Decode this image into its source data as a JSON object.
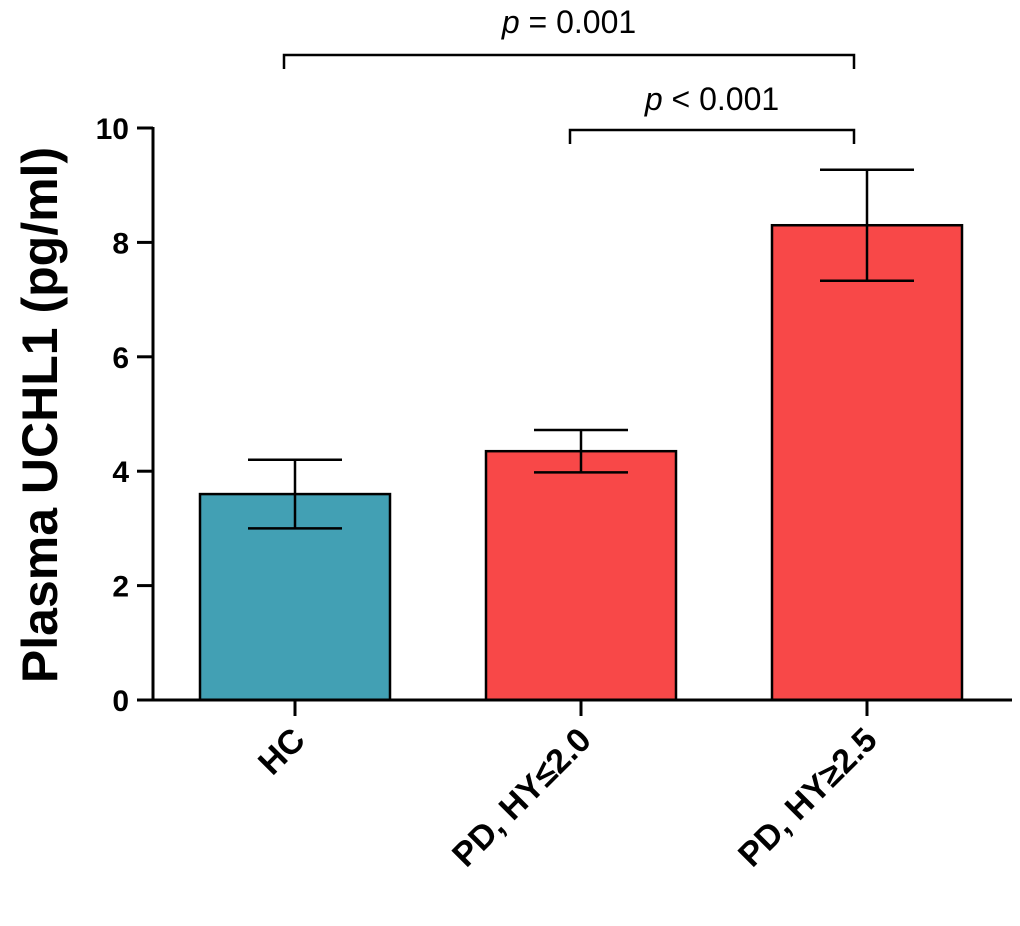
{
  "chart_data": {
    "type": "bar",
    "title": "",
    "xlabel": "",
    "ylabel": "Plasma UCHL1 (pg/ml)",
    "ylim": [
      0,
      10
    ],
    "yticks": [
      "0",
      "2",
      "4",
      "6",
      "8",
      "10"
    ],
    "categories": [
      "HC",
      "PD, HY≤2.0",
      "PD, HY≥2.5"
    ],
    "values": [
      3.6,
      4.35,
      8.3
    ],
    "error_plus": [
      0.6,
      0.37,
      0.97
    ],
    "error_minus": [
      0.6,
      0.37,
      0.97
    ],
    "colors": [
      "#42a0b4",
      "#f84848",
      "#f84848"
    ],
    "annotations": [
      {
        "from": 0,
        "to": 2,
        "p_symbol": "p",
        "text": " = 0.001"
      },
      {
        "from": 1,
        "to": 2,
        "p_symbol": "p",
        "text": " < 0.001"
      }
    ]
  }
}
